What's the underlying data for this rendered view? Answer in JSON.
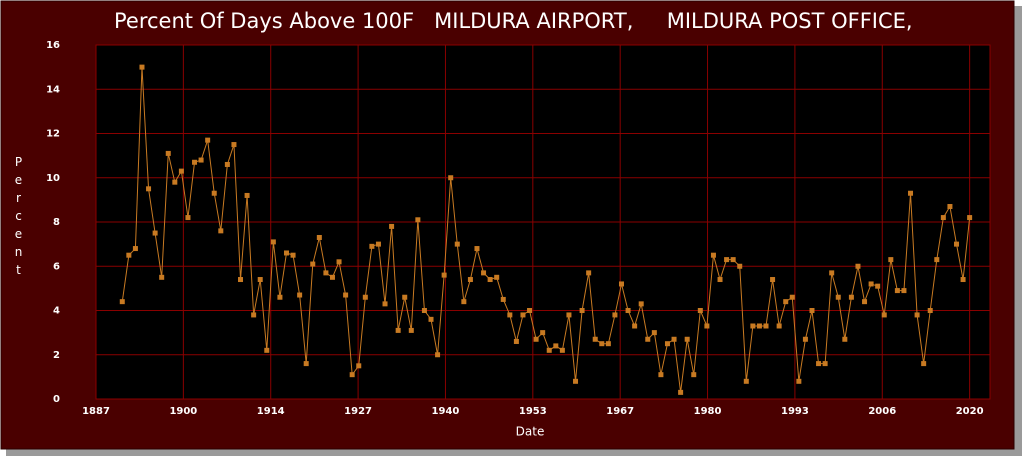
{
  "chart_data": {
    "type": "line",
    "title": "Percent Of Days Above 100F   MILDURA AIRPORT,     MILDURA POST OFFICE,",
    "xlabel": "Date",
    "ylabel": "Percent",
    "x": [
      1891,
      1892,
      1893,
      1894,
      1895,
      1896,
      1897,
      1898,
      1899,
      1900,
      1901,
      1902,
      1903,
      1904,
      1905,
      1906,
      1907,
      1908,
      1909,
      1910,
      1911,
      1912,
      1913,
      1914,
      1915,
      1916,
      1917,
      1918,
      1919,
      1920,
      1921,
      1922,
      1923,
      1924,
      1925,
      1926,
      1927,
      1928,
      1929,
      1930,
      1931,
      1932,
      1933,
      1934,
      1935,
      1936,
      1937,
      1938,
      1939,
      1940,
      1941,
      1942,
      1943,
      1944,
      1945,
      1946,
      1947,
      1948,
      1949,
      1950,
      1951,
      1952,
      1953,
      1954,
      1955,
      1956,
      1957,
      1958,
      1959,
      1960,
      1961,
      1962,
      1963,
      1964,
      1965,
      1966,
      1967,
      1968,
      1969,
      1970,
      1971,
      1972,
      1973,
      1974,
      1975,
      1976,
      1977,
      1978,
      1979,
      1980,
      1981,
      1982,
      1983,
      1984,
      1985,
      1986,
      1987,
      1988,
      1989,
      1990,
      1991,
      1992,
      1993,
      1994,
      1995,
      1996,
      1997,
      1998,
      1999,
      2000,
      2001,
      2002,
      2003,
      2004,
      2005,
      2006,
      2007,
      2008,
      2009,
      2010,
      2011,
      2012,
      2013,
      2014,
      2015,
      2016,
      2017,
      2018,
      2019,
      2020
    ],
    "series": [
      {
        "name": "Percent",
        "color": "#c87a22",
        "values": [
          4.4,
          6.5,
          6.8,
          15.0,
          9.5,
          7.5,
          5.5,
          11.1,
          9.8,
          10.3,
          8.2,
          10.7,
          10.8,
          11.7,
          9.3,
          7.6,
          10.6,
          11.5,
          5.4,
          9.2,
          3.8,
          5.4,
          2.2,
          7.1,
          4.6,
          6.6,
          6.5,
          4.7,
          1.6,
          6.1,
          7.3,
          5.7,
          5.5,
          6.2,
          4.7,
          1.1,
          1.5,
          4.6,
          6.9,
          7.0,
          4.3,
          7.8,
          3.1,
          4.6,
          3.1,
          8.1,
          4.0,
          3.6,
          2.0,
          5.6,
          10.0,
          7.0,
          4.4,
          5.4,
          6.8,
          5.7,
          5.4,
          5.5,
          4.5,
          3.8,
          2.6,
          3.8,
          4.0,
          2.7,
          3.0,
          2.2,
          2.4,
          2.2,
          3.8,
          0.8,
          4.0,
          5.7,
          2.7,
          2.5,
          2.5,
          3.8,
          5.2,
          4.0,
          3.3,
          4.3,
          2.7,
          3.0,
          1.1,
          2.5,
          2.7,
          0.3,
          2.7,
          1.1,
          4.0,
          3.3,
          6.5,
          5.4,
          6.3,
          6.3,
          6.0,
          0.8,
          3.3,
          3.3,
          3.3,
          5.4,
          3.3,
          4.4,
          4.6,
          0.8,
          2.7,
          4.0,
          1.6,
          1.6,
          5.7,
          4.6,
          2.7,
          4.6,
          6.0,
          4.4,
          5.2,
          5.1,
          3.8,
          6.3,
          4.9,
          4.9,
          9.3,
          3.8,
          1.6,
          4.0,
          6.3,
          8.2,
          8.7,
          7.0,
          5.4,
          8.2
        ]
      }
    ],
    "xlim": [
      1887,
      2023.1
    ],
    "xticks": [
      1887,
      {
        "value": 1900.3,
        "label": "1900"
      },
      {
        "value": 1913.6,
        "label": "1914"
      },
      {
        "value": 1926.9,
        "label": "1927"
      },
      {
        "value": 1940.2,
        "label": "1940"
      },
      {
        "value": 1953.5,
        "label": "1953"
      },
      {
        "value": 1966.8,
        "label": "1967"
      },
      {
        "value": 1980.1,
        "label": "1980"
      },
      {
        "value": 1993.4,
        "label": "1993"
      },
      {
        "value": 2006.7,
        "label": "2006"
      },
      2020
    ],
    "ylim": [
      0,
      16
    ],
    "yticks": [
      0,
      2,
      4,
      6,
      8,
      10,
      12,
      14,
      16
    ],
    "grid": true
  }
}
